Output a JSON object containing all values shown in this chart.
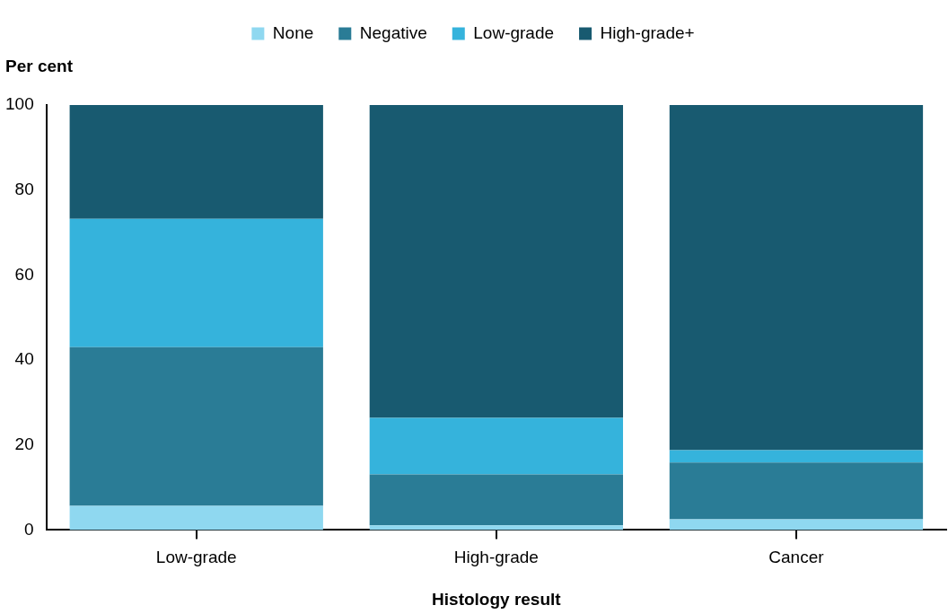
{
  "chart_data": {
    "type": "bar",
    "stacked": true,
    "xlabel": "Histology result",
    "ylabel": "Per cent",
    "categories": [
      "Low-grade",
      "High-grade",
      "Cancer"
    ],
    "series": [
      {
        "name": "None",
        "color": "#8fd8f0",
        "values": [
          5.7,
          1.1,
          2.5
        ]
      },
      {
        "name": "Negative",
        "color": "#2a7c96",
        "values": [
          37.3,
          12.0,
          13.4
        ]
      },
      {
        "name": "Low-grade",
        "color": "#35b3dc",
        "values": [
          30.2,
          13.3,
          2.9
        ]
      },
      {
        "name": "High-grade+",
        "color": "#185a70",
        "values": [
          26.8,
          73.6,
          81.2
        ]
      }
    ],
    "ylim": [
      0,
      100
    ],
    "yticks": [
      0,
      20,
      40,
      60,
      80,
      100
    ],
    "grid": false,
    "legend": "top"
  }
}
